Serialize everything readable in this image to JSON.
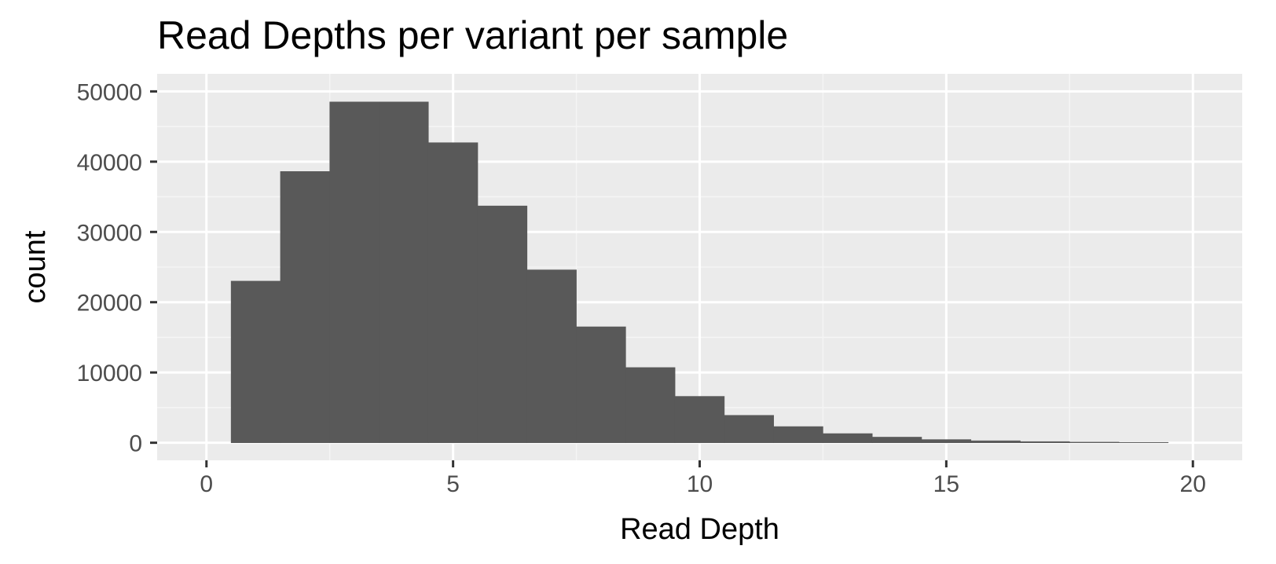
{
  "chart_data": {
    "type": "bar",
    "title": "Read Depths per variant per sample",
    "xlabel": "Read Depth",
    "ylabel": "count",
    "xlim": [
      -1,
      21
    ],
    "ylim": [
      -2500,
      52500
    ],
    "x_ticks": [
      0,
      5,
      10,
      15,
      20
    ],
    "x_tick_labels": [
      "0",
      "5",
      "10",
      "15",
      "20"
    ],
    "y_ticks": [
      0,
      10000,
      20000,
      30000,
      40000,
      50000
    ],
    "y_tick_labels": [
      "0",
      "10000",
      "20000",
      "30000",
      "40000",
      "50000"
    ],
    "bin_width": 1,
    "x": [
      1,
      2,
      3,
      4,
      5,
      6,
      7,
      8,
      9,
      10,
      11,
      12,
      13,
      14,
      15,
      16,
      17,
      18,
      19
    ],
    "values": [
      23000,
      38600,
      48500,
      48500,
      42700,
      33700,
      24600,
      16500,
      10700,
      6600,
      3900,
      2300,
      1300,
      800,
      450,
      280,
      160,
      90,
      50
    ],
    "grid": true,
    "colors": {
      "panel_background": "#ebebeb",
      "grid_major": "#ffffff",
      "grid_minor": "#f5f5f5",
      "bar_fill": "#595959",
      "tick_mark": "#333333"
    }
  }
}
